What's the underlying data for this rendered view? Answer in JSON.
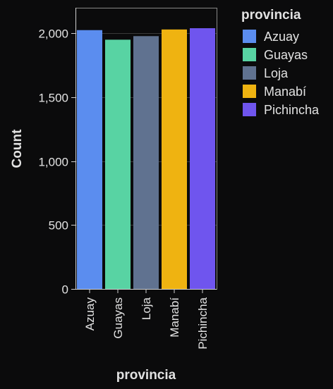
{
  "chart_data": {
    "type": "bar",
    "categories": [
      "Azuay",
      "Guayas",
      "Loja",
      "Manabí",
      "Pichincha"
    ],
    "values": [
      2025,
      1950,
      1978,
      2030,
      2040
    ],
    "colors": [
      "#5b8def",
      "#58d3a3",
      "#607290",
      "#efb311",
      "#6f55ee"
    ],
    "xlabel": "provincia",
    "ylabel": "Count",
    "ylim": [
      0,
      2200
    ],
    "y_ticks": [
      0,
      500,
      1000,
      1500,
      2000
    ],
    "y_tick_labels": [
      "0",
      "500",
      "1,000",
      "1,500",
      "2,000"
    ],
    "grid": true,
    "legend": {
      "title": "provincia",
      "placement": "right",
      "entries": [
        "Azuay",
        "Guayas",
        "Loja",
        "Manabí",
        "Pichincha"
      ]
    }
  }
}
